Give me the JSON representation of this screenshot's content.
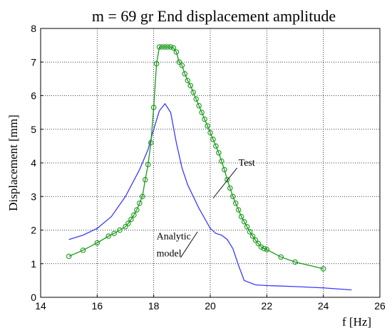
{
  "chart_data": {
    "type": "line",
    "title": "m = 69 gr  End displacement amplitude",
    "xlabel": "f [Hz]",
    "ylabel": "Displacement [mm]",
    "xlim": [
      14,
      26
    ],
    "ylim": [
      0,
      8
    ],
    "xticks": [
      14,
      16,
      18,
      20,
      22,
      24,
      26
    ],
    "yticks": [
      0,
      1,
      2,
      3,
      4,
      5,
      6,
      7,
      8
    ],
    "grid": true,
    "colors": {
      "analytic": "#3a3aff",
      "test": "#1a9a1a"
    },
    "series": [
      {
        "name": "Analytic model",
        "x": [
          15.0,
          15.5,
          16.0,
          16.5,
          17.0,
          17.5,
          17.8,
          18.0,
          18.2,
          18.4,
          18.6,
          18.8,
          19.0,
          19.2,
          19.4,
          19.6,
          19.8,
          20.0,
          20.2,
          20.4,
          20.6,
          20.8,
          21.0,
          21.2,
          21.6,
          22.0,
          23.0,
          24.0,
          25.0
        ],
        "y": [
          1.72,
          1.85,
          2.05,
          2.4,
          3.0,
          3.8,
          4.4,
          5.0,
          5.55,
          5.76,
          5.5,
          4.6,
          3.85,
          3.35,
          3.0,
          2.65,
          2.35,
          2.05,
          1.9,
          1.85,
          1.72,
          1.45,
          0.95,
          0.5,
          0.37,
          0.35,
          0.32,
          0.28,
          0.22
        ]
      },
      {
        "name": "Test",
        "x": [
          15.0,
          15.5,
          16.0,
          16.4,
          16.6,
          16.8,
          17.0,
          17.1,
          17.2,
          17.3,
          17.4,
          17.5,
          17.6,
          17.7,
          17.8,
          17.9,
          18.0,
          18.1,
          18.2,
          18.3,
          18.4,
          18.5,
          18.6,
          18.7,
          18.8,
          18.9,
          19.0,
          19.1,
          19.2,
          19.3,
          19.4,
          19.5,
          19.6,
          19.7,
          19.8,
          19.9,
          20.0,
          20.1,
          20.2,
          20.3,
          20.4,
          20.5,
          20.6,
          20.7,
          20.8,
          20.9,
          21.0,
          21.1,
          21.2,
          21.3,
          21.4,
          21.5,
          21.6,
          21.7,
          21.8,
          21.9,
          22.0,
          22.5,
          23.0,
          24.0
        ],
        "y": [
          1.22,
          1.4,
          1.62,
          1.82,
          1.9,
          2.0,
          2.1,
          2.2,
          2.32,
          2.45,
          2.6,
          2.8,
          3.0,
          3.5,
          3.95,
          4.6,
          5.65,
          6.95,
          7.45,
          7.45,
          7.45,
          7.45,
          7.45,
          7.42,
          7.3,
          7.0,
          6.9,
          6.65,
          6.45,
          6.3,
          6.1,
          5.9,
          5.7,
          5.5,
          5.3,
          5.1,
          4.9,
          4.7,
          4.5,
          4.3,
          4.05,
          3.8,
          3.5,
          3.25,
          3.0,
          2.8,
          2.6,
          2.4,
          2.25,
          2.1,
          1.95,
          1.82,
          1.7,
          1.6,
          1.5,
          1.45,
          1.42,
          1.2,
          1.05,
          0.85
        ]
      }
    ],
    "annotations": [
      {
        "text": "Test",
        "x": 21.0,
        "y": 3.92
      },
      {
        "text": "Analytic",
        "x": 18.1,
        "y": 1.72
      },
      {
        "text": "model",
        "x": 18.1,
        "y": 1.22
      }
    ]
  }
}
